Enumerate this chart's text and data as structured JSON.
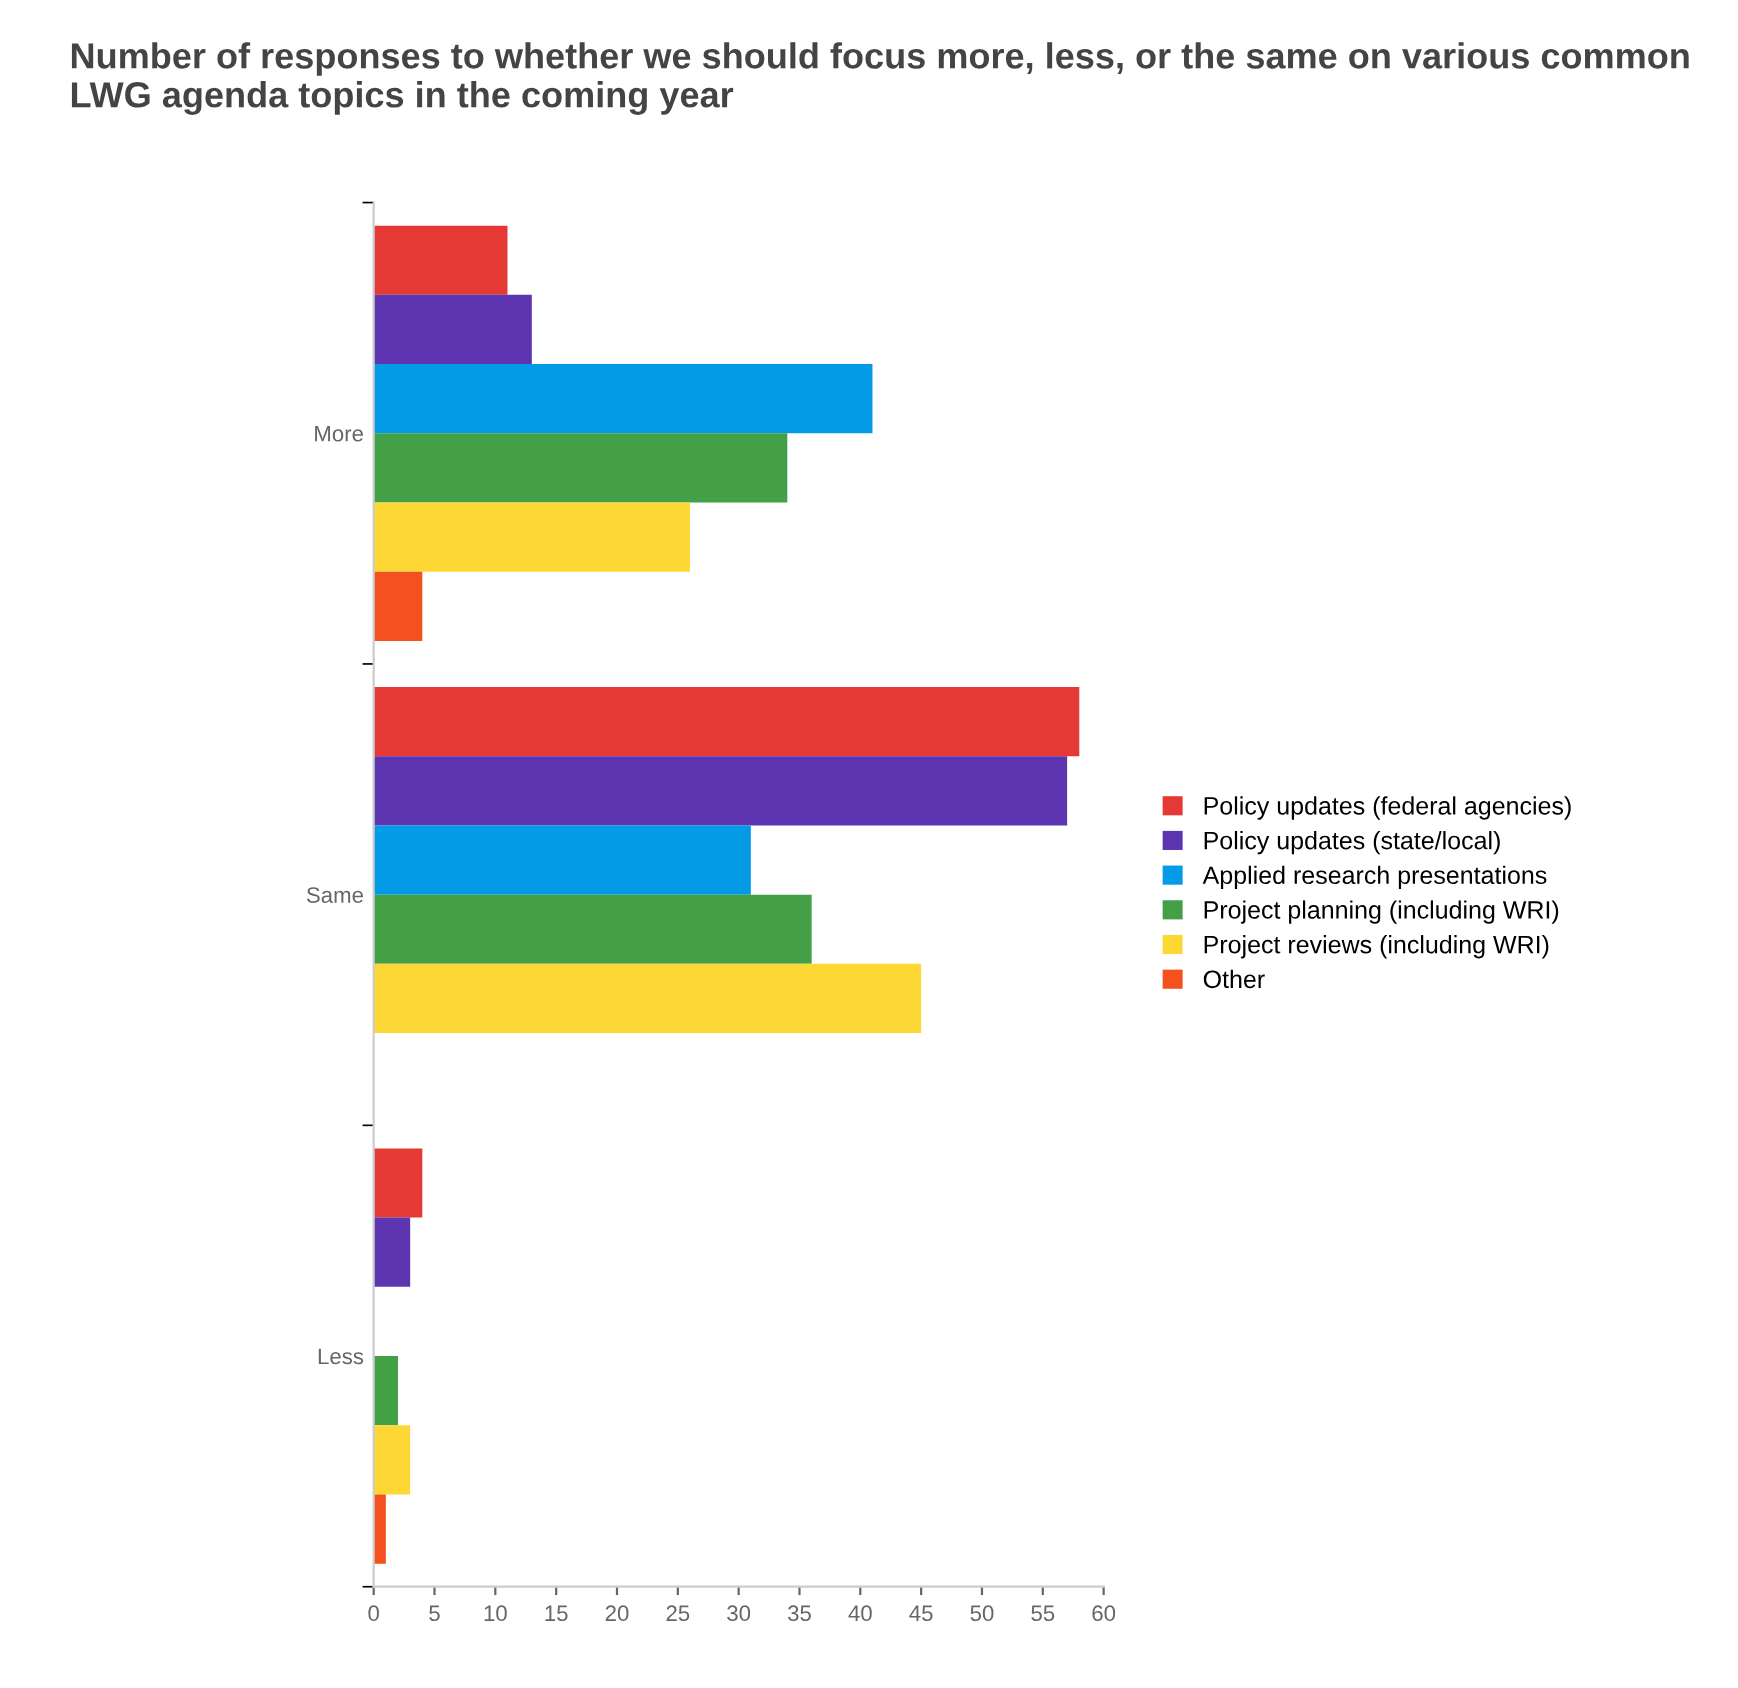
{
  "chart_data": {
    "type": "bar",
    "orientation": "horizontal",
    "title": "Number of responses to whether we should focus more, less, or the same on various common LWG agenda topics in the coming year",
    "categories": [
      "More",
      "Same",
      "Less"
    ],
    "series": [
      {
        "name": "Policy updates (federal agencies)",
        "color": "#e53935",
        "values": [
          11,
          58,
          4
        ]
      },
      {
        "name": "Policy updates (state/local)",
        "color": "#5e35b1",
        "values": [
          13,
          57,
          3
        ]
      },
      {
        "name": "Applied research presentations",
        "color": "#039be5",
        "values": [
          41,
          31,
          0
        ]
      },
      {
        "name": "Project planning (including WRI)",
        "color": "#43a047",
        "values": [
          34,
          36,
          2
        ]
      },
      {
        "name": "Project reviews (including WRI)",
        "color": "#fdd835",
        "values": [
          26,
          45,
          3
        ]
      },
      {
        "name": "Other",
        "color": "#f4511e",
        "values": [
          4,
          0,
          1
        ]
      }
    ],
    "xlim": [
      0,
      60
    ],
    "xticks": [
      0,
      5,
      10,
      15,
      20,
      25,
      30,
      35,
      40,
      45,
      50,
      55,
      60
    ],
    "grid": false,
    "legend": "right"
  }
}
